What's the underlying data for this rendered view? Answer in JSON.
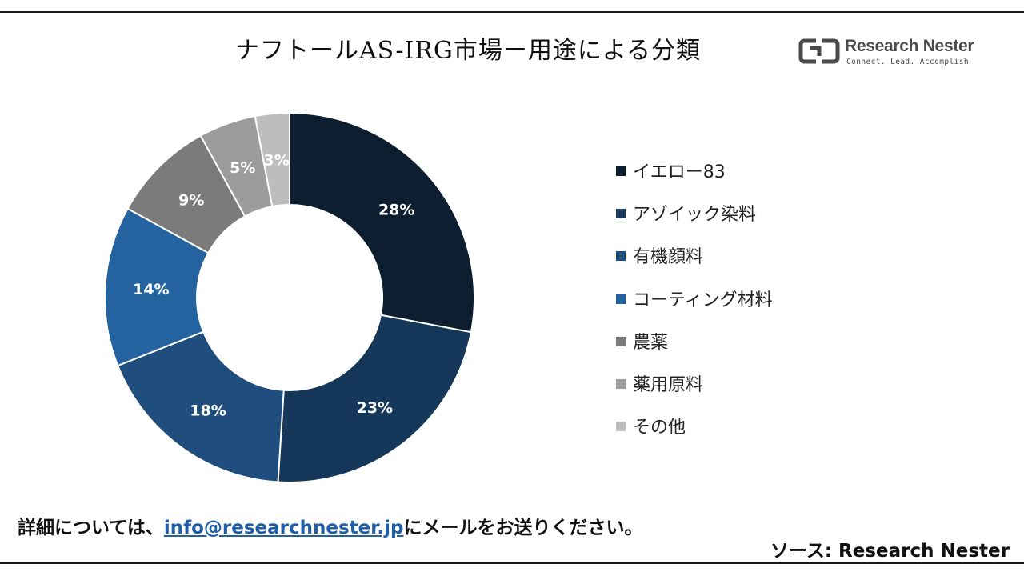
{
  "title": "ナフトールAS-IRG市場ー用途による分類",
  "logo": {
    "name": "Research Nester",
    "tagline": "Connect. Lead. Accomplish",
    "colors": {
      "mark": "#4a4a4a"
    }
  },
  "chart_data": {
    "type": "pie",
    "donut": true,
    "title": "ナフトールAS-IRG市場ー用途による分類",
    "legend_position": "right",
    "series": [
      {
        "name": "イエロー83",
        "value": 28,
        "label": "28%",
        "color": "#0c1e30"
      },
      {
        "name": "アゾイック染料",
        "value": 23,
        "label": "23%",
        "color": "#14375a"
      },
      {
        "name": "有機顔料",
        "value": 18,
        "label": "18%",
        "color": "#1f4e7e"
      },
      {
        "name": "コーティング材料",
        "value": 14,
        "label": "14%",
        "color": "#2563a0"
      },
      {
        "name": "農薬",
        "value": 9,
        "label": "9%",
        "color": "#7b7b7b"
      },
      {
        "name": "薬用原料",
        "value": 5,
        "label": "5%",
        "color": "#9c9c9c"
      },
      {
        "name": "その他",
        "value": 3,
        "label": "3%",
        "color": "#bdbdbd"
      }
    ]
  },
  "footer": {
    "prefix": "詳細については、",
    "email": "info@researchnester.jp",
    "suffix": "にメールをお送りください。"
  },
  "source": "ソース: Research Nester"
}
